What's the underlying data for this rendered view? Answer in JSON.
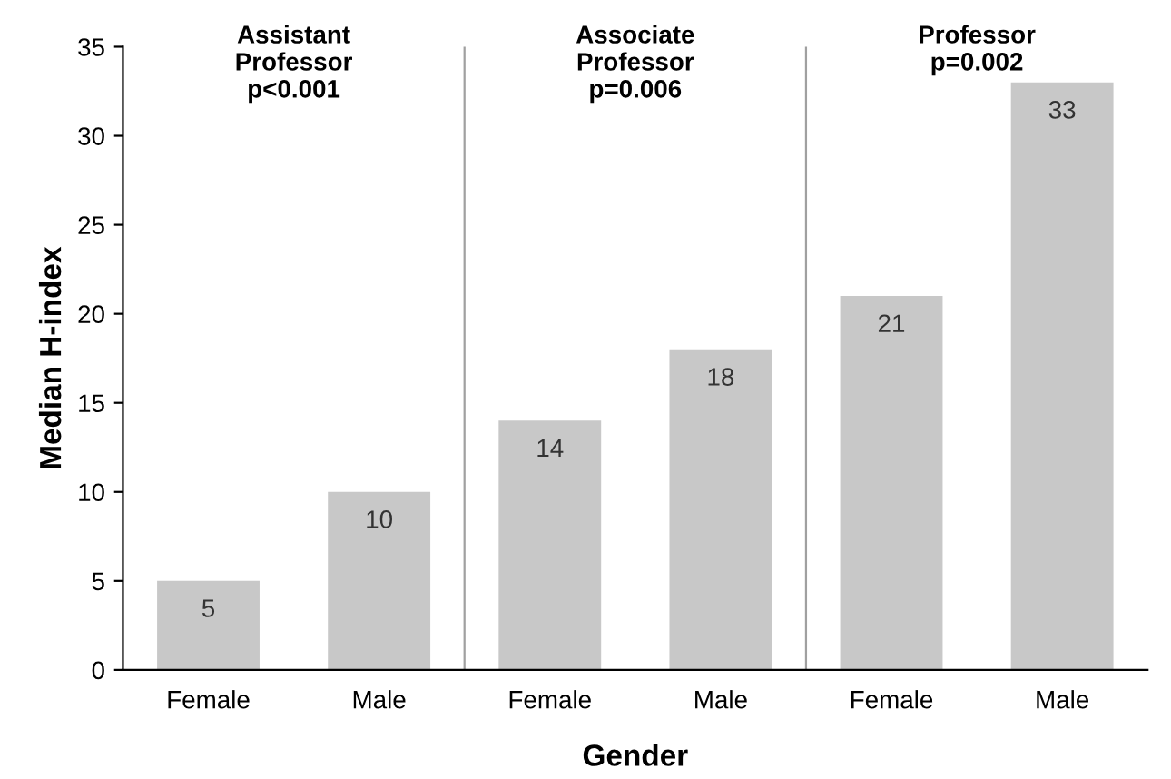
{
  "chart_data": {
    "type": "bar",
    "xlabel": "Gender",
    "ylabel": "Median H-index",
    "categories": [
      "Female",
      "Male",
      "Female",
      "Male",
      "Female",
      "Male"
    ],
    "values": [
      5,
      10,
      14,
      18,
      21,
      33
    ],
    "color": "#c8c8c8",
    "data_labels": true,
    "ylim": [
      0,
      35
    ],
    "yticks": [
      0,
      5,
      10,
      15,
      20,
      25,
      30,
      35
    ],
    "grid": false,
    "legend": false,
    "annotations": [
      "Assistant\nProfessor\np<0.001",
      "Associate\nProfessor\np=0.006",
      "Professor\np=0.002"
    ]
  }
}
